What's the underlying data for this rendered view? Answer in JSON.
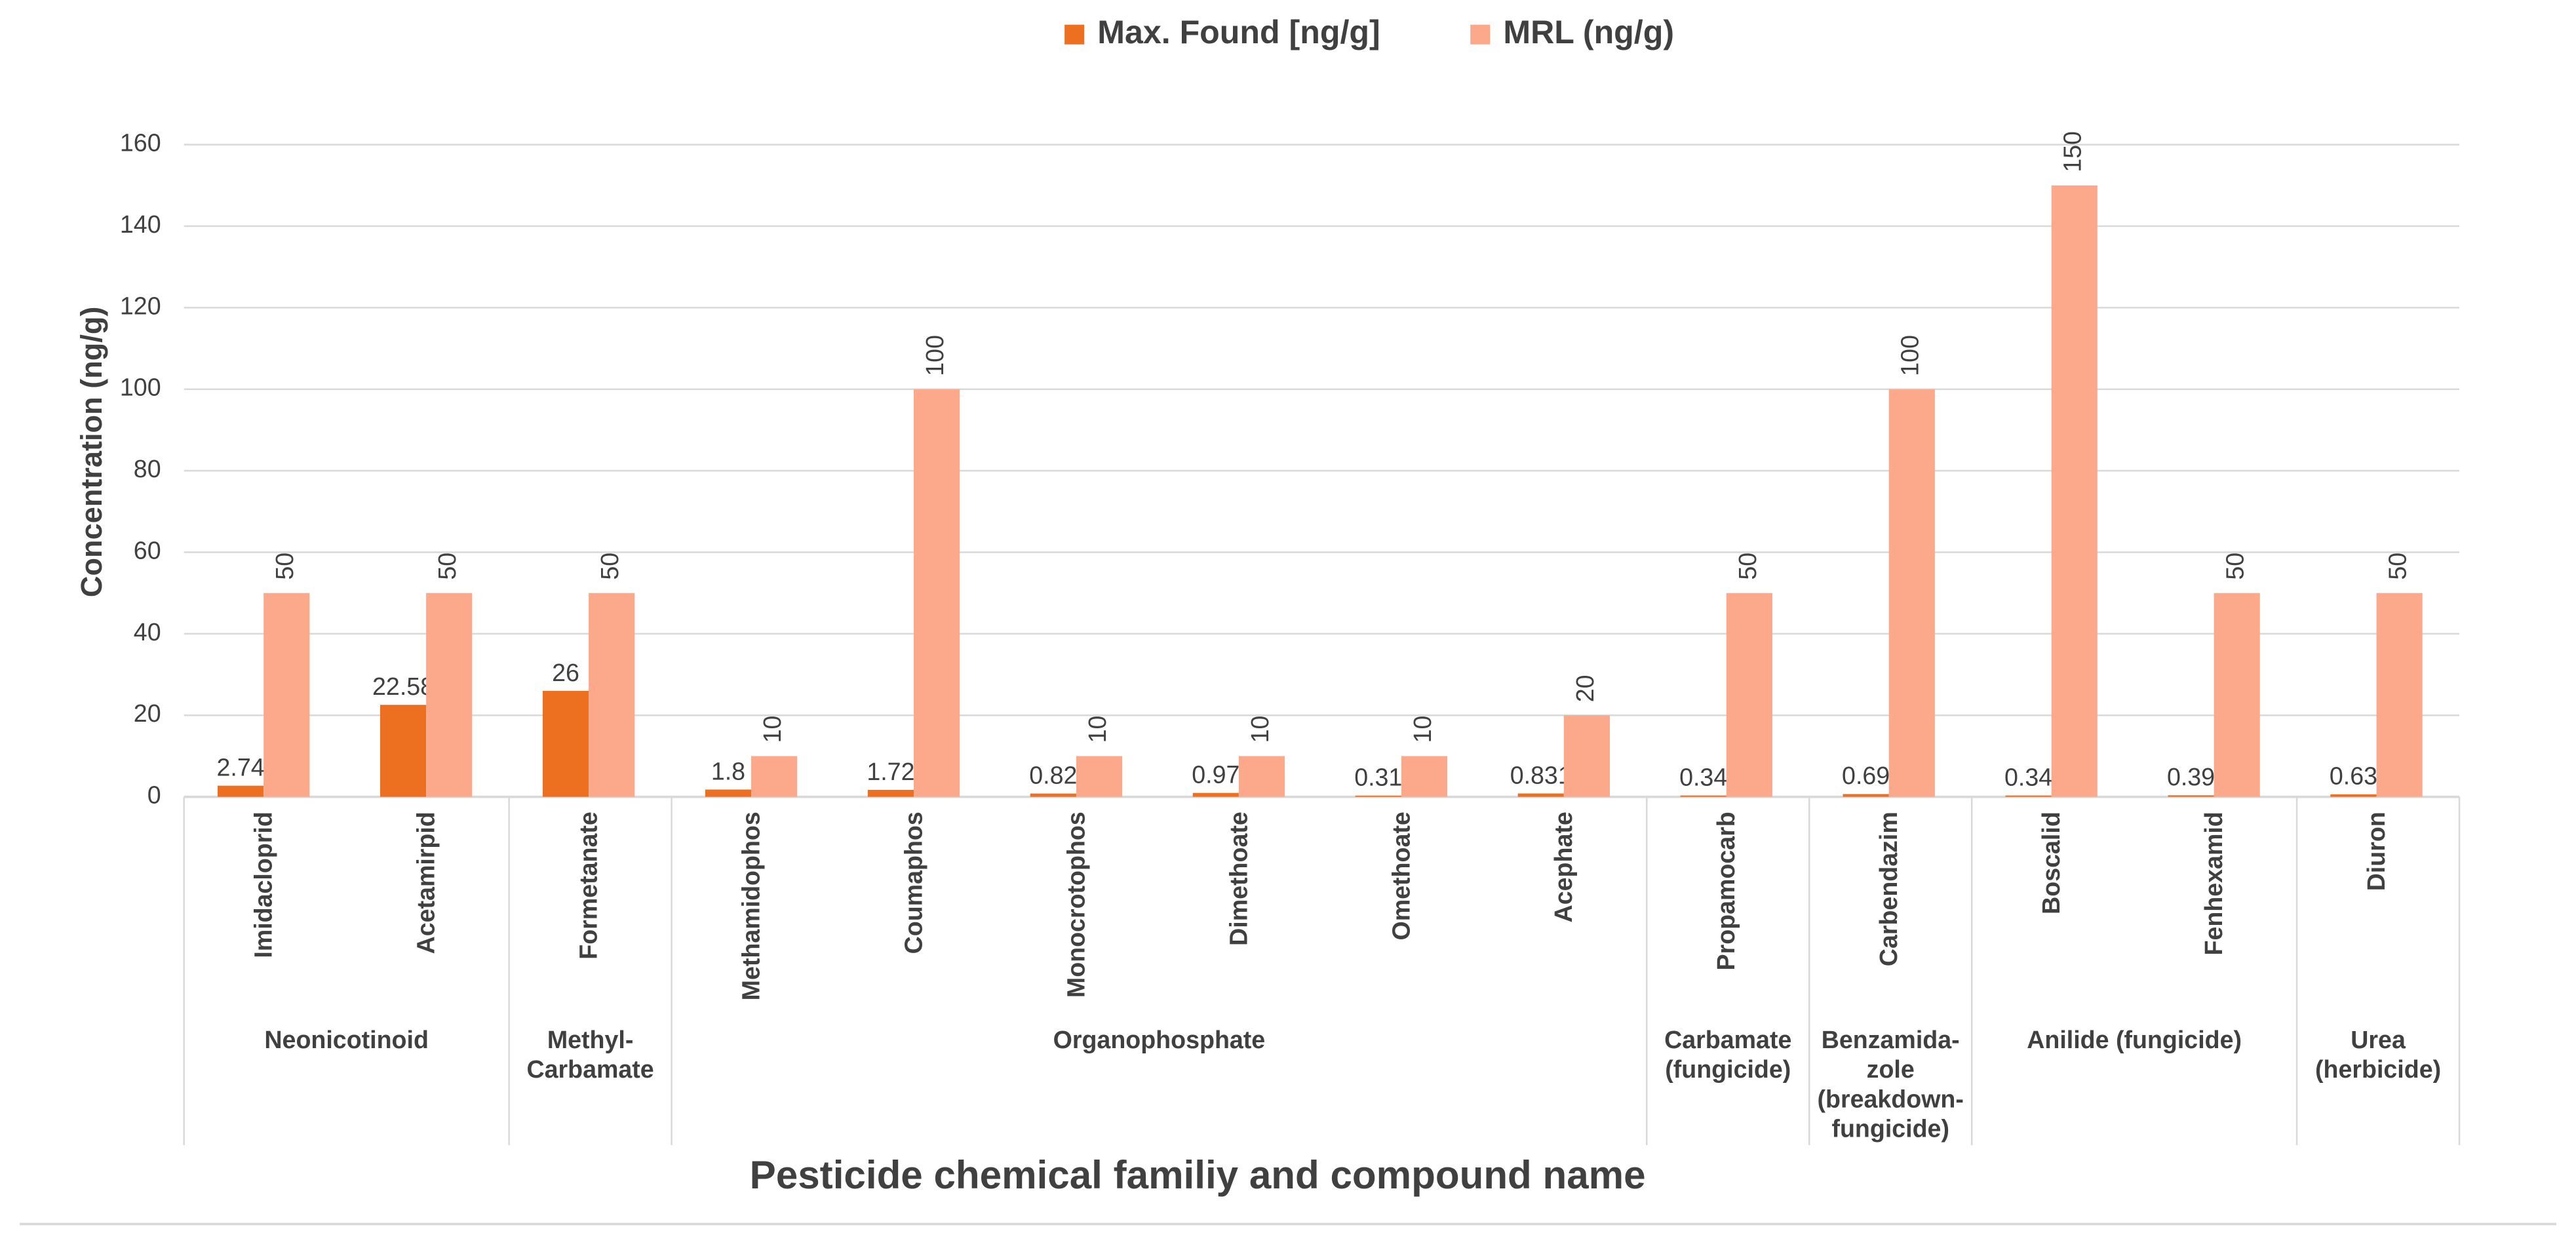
{
  "chart_data": {
    "type": "bar",
    "x_label": "Pesticide chemical familiy and compound name",
    "y_label": "Concentration (ng/g)",
    "ylim": [
      0,
      160
    ],
    "yticks": [
      0,
      20,
      40,
      60,
      80,
      100,
      120,
      140,
      160
    ],
    "grid": true,
    "legend": "top",
    "groups": [
      {
        "label": [
          "Neonicotinoid"
        ],
        "categories": [
          "Imidacloprid",
          "Acetamirpid"
        ]
      },
      {
        "label": [
          "Methyl-",
          "Carbamate"
        ],
        "categories": [
          "Formetanate"
        ]
      },
      {
        "label": [
          "Organophosphate"
        ],
        "categories": [
          "Methamidophos",
          "Coumaphos",
          "Monocrotophos",
          "Dimethoate",
          "Omethoate",
          "Acephate"
        ]
      },
      {
        "label": [
          "Carbamate",
          "(fungicide)"
        ],
        "categories": [
          "Propamocarb"
        ]
      },
      {
        "label": [
          "Benzamida-",
          "zole",
          "(breakdown-",
          "fungicide)"
        ],
        "categories": [
          "Carbendazim"
        ]
      },
      {
        "label": [
          "Anilide (fungicide)"
        ],
        "categories": [
          "Boscalid",
          "Fenhexamid"
        ]
      },
      {
        "label": [
          "Urea",
          "(herbicide)"
        ],
        "categories": [
          "Diuron"
        ]
      }
    ],
    "series": [
      {
        "name": "Max. Found [ng/g]",
        "color": "#ED7020",
        "values": [
          2.74,
          22.58,
          26,
          1.8,
          1.72,
          0.82,
          0.97,
          0.31,
          0.831,
          0.34,
          0.69,
          0.34,
          0.39,
          0.63
        ]
      },
      {
        "name": "MRL (ng/g)",
        "color": "#FBA98A",
        "values": [
          50,
          50,
          50,
          10,
          100,
          10,
          10,
          10,
          20,
          50,
          100,
          150,
          50,
          50
        ]
      }
    ]
  }
}
